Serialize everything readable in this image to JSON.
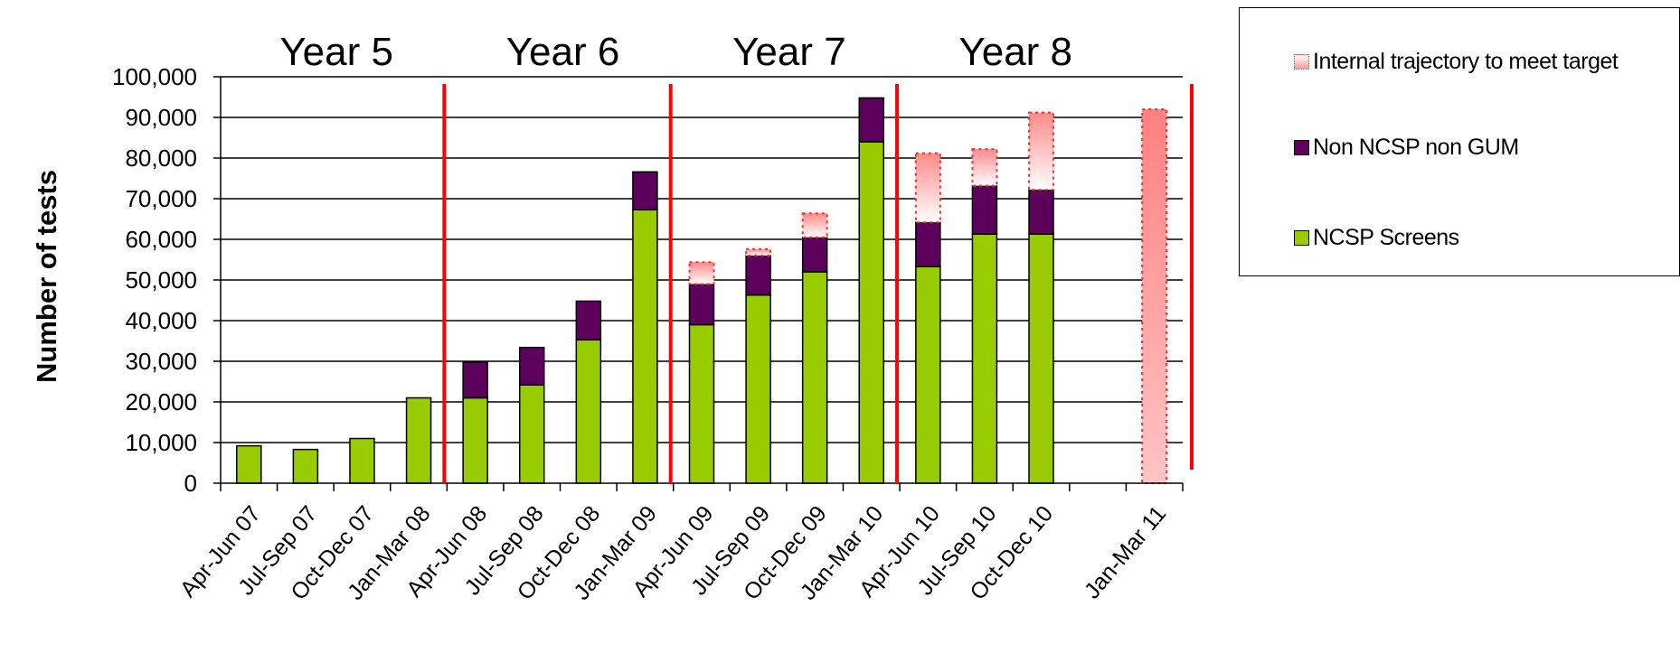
{
  "chart_data": {
    "type": "bar",
    "stacked": true,
    "ylabel": "Number of tests",
    "ylim": [
      0,
      100000
    ],
    "yticks": [
      "0",
      "10,000",
      "20,000",
      "30,000",
      "40,000",
      "50,000",
      "60,000",
      "70,000",
      "80,000",
      "90,000",
      "100,000"
    ],
    "categories": [
      "Apr-Jun 07",
      "Jul-Sep 07",
      "Oct-Dec 07",
      "Jan-Mar 08",
      "Apr-Jun 08",
      "Jul-Sep 08",
      "Oct-Dec 08",
      "Jan-Mar 09",
      "Apr-Jun 09",
      "Jul-Sep 09",
      "Oct-Dec 09",
      "Jan-Mar 10",
      "Apr-Jun 10",
      "Jul-Sep 10",
      "Oct-Dec 10",
      "",
      "Jan-Mar 11"
    ],
    "series": [
      {
        "name": "NCSP Screens",
        "color": "#99cc00",
        "values": [
          9200,
          8300,
          11000,
          21000,
          21000,
          24200,
          35300,
          67300,
          39000,
          46300,
          52000,
          84000,
          53300,
          61300,
          61300,
          0,
          0
        ]
      },
      {
        "name": "Non NCSP non GUM",
        "color": "#5c005c",
        "values": [
          0,
          0,
          0,
          0,
          8800,
          9200,
          9500,
          9300,
          10000,
          9700,
          8500,
          10800,
          10900,
          11900,
          10900,
          0,
          0
        ]
      },
      {
        "name": "Internal trajectory to meet target",
        "color": "#ff9a9a",
        "values": [
          0,
          0,
          0,
          0,
          0,
          0,
          0,
          0,
          5400,
          1600,
          5900,
          0,
          17000,
          9000,
          19000,
          0,
          92000
        ]
      }
    ],
    "year_labels": [
      "Year 5",
      "Year 6",
      "Year 7",
      "Year 8"
    ],
    "grid": true,
    "legend_position": "top-right",
    "divider_color": "#ff0000"
  },
  "legend": {
    "items": [
      {
        "label": "Internal trajectory to meet target",
        "icon": "dotted-gradient-swatch"
      },
      {
        "label": "Non NCSP non GUM",
        "icon": "purple-swatch"
      },
      {
        "label": "NCSP Screens",
        "icon": "green-swatch"
      }
    ]
  }
}
